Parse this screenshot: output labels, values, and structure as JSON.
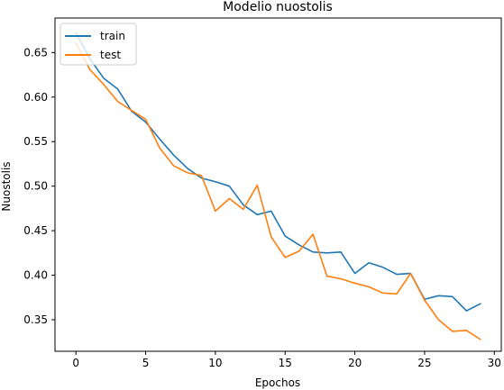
{
  "chart_data": {
    "type": "line",
    "title": "Modelio nuostolis",
    "xlabel": "Epochos",
    "ylabel": "Nuostolis",
    "xlim": [
      -1.5,
      30.5
    ],
    "ylim": [
      0.3146,
      0.6888
    ],
    "x_ticks": [
      0,
      5,
      10,
      15,
      20,
      25,
      30
    ],
    "y_ticks": [
      0.35,
      0.4,
      0.45,
      0.5,
      0.55,
      0.6,
      0.65
    ],
    "x_tick_labels": [
      "0",
      "5",
      "10",
      "15",
      "20",
      "25",
      "30"
    ],
    "y_tick_labels": [
      "0.35",
      "0.40",
      "0.45",
      "0.50",
      "0.55",
      "0.60",
      "0.65"
    ],
    "grid": false,
    "legend_position": "top-left",
    "x": [
      0,
      1,
      2,
      3,
      4,
      5,
      6,
      7,
      8,
      9,
      10,
      11,
      12,
      13,
      14,
      15,
      16,
      17,
      18,
      19,
      20,
      21,
      22,
      23,
      24,
      25,
      26,
      27,
      28,
      29
    ],
    "series": [
      {
        "name": "train",
        "color": "#1f77b4",
        "values": [
          0.672,
          0.643,
          0.621,
          0.609,
          0.584,
          0.572,
          0.553,
          0.535,
          0.52,
          0.509,
          0.505,
          0.5,
          0.479,
          0.468,
          0.472,
          0.444,
          0.434,
          0.426,
          0.425,
          0.426,
          0.402,
          0.414,
          0.409,
          0.401,
          0.402,
          0.373,
          0.377,
          0.376,
          0.36,
          0.368
        ]
      },
      {
        "name": "test",
        "color": "#ff7f0e",
        "values": [
          0.661,
          0.631,
          0.614,
          0.595,
          0.585,
          0.575,
          0.543,
          0.523,
          0.515,
          0.512,
          0.472,
          0.486,
          0.474,
          0.501,
          0.443,
          0.42,
          0.427,
          0.446,
          0.399,
          0.396,
          0.391,
          0.387,
          0.38,
          0.379,
          0.402,
          0.372,
          0.35,
          0.337,
          0.338,
          0.328
        ]
      }
    ]
  }
}
